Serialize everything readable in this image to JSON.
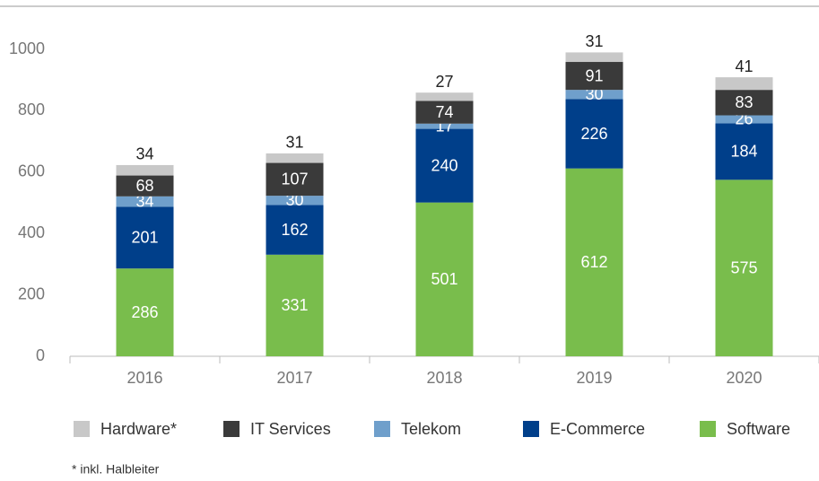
{
  "chart_data": {
    "type": "stacked_bar",
    "categories": [
      "2016",
      "2017",
      "2018",
      "2019",
      "2020"
    ],
    "series": [
      {
        "name": "Software",
        "color": "#79bd4c",
        "values": [
          286,
          331,
          501,
          612,
          575
        ]
      },
      {
        "name": "E-Commerce",
        "color": "#003f8a",
        "values": [
          201,
          162,
          240,
          226,
          184
        ]
      },
      {
        "name": "Telekom",
        "color": "#6f9fcb",
        "values": [
          34,
          30,
          17,
          30,
          26
        ]
      },
      {
        "name": "IT Services",
        "color": "#3a3a3a",
        "values": [
          68,
          107,
          74,
          91,
          83
        ]
      },
      {
        "name": "Hardware*",
        "color": "#c8c8c8",
        "values": [
          34,
          31,
          27,
          31,
          41
        ]
      }
    ],
    "ylim": [
      0,
      1000
    ],
    "yticks": [
      0,
      200,
      400,
      600,
      800,
      1000
    ],
    "grid": false,
    "legend": "bottom",
    "footnote": "* inkl. Halbleiter"
  }
}
